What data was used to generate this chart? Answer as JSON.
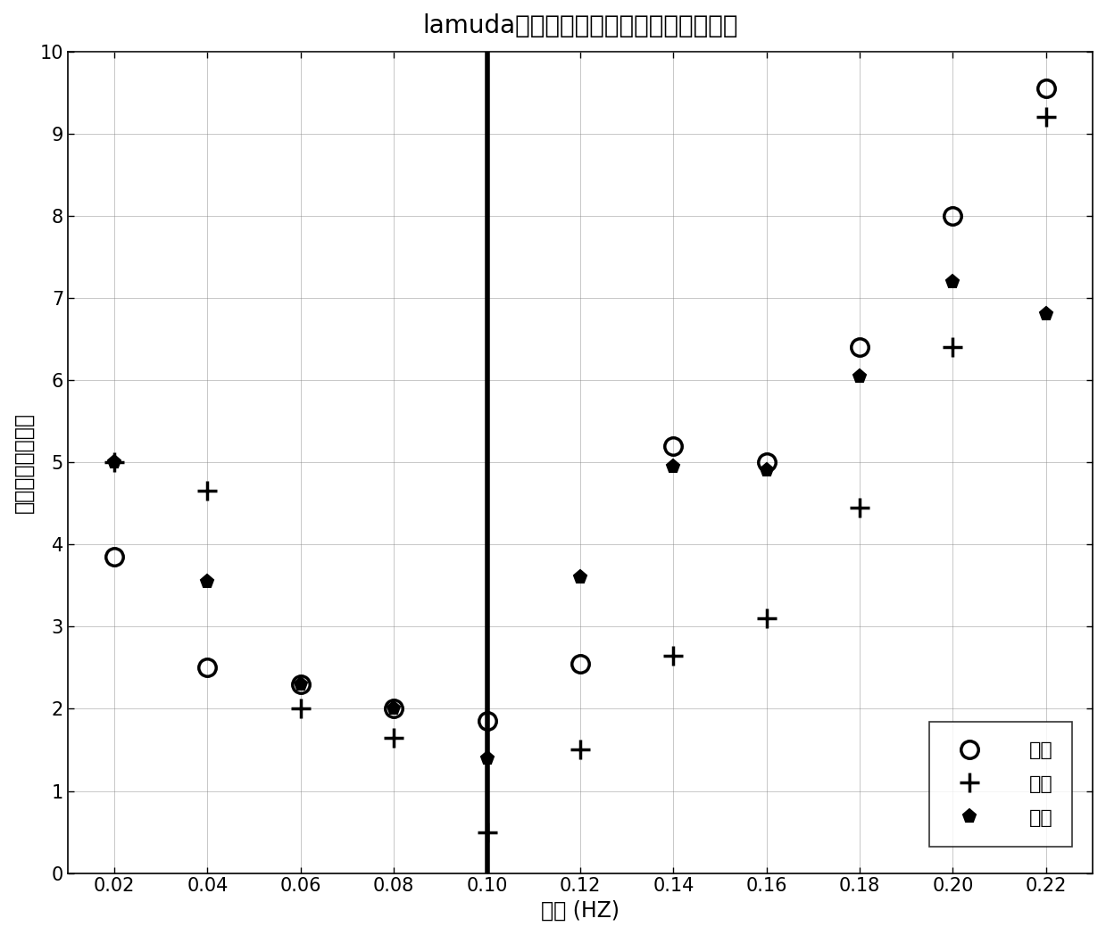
{
  "title": "lamuda变化时三个轴向的变形角误差曲线",
  "xlabel": "频率 (HZ)",
  "ylabel": "估计误差（角分）",
  "xlim": [
    0.01,
    0.23
  ],
  "ylim": [
    0,
    10
  ],
  "xticks": [
    0.02,
    0.04,
    0.06,
    0.08,
    0.1,
    0.12,
    0.14,
    0.16,
    0.18,
    0.2,
    0.22
  ],
  "yticks": [
    0,
    1,
    2,
    3,
    4,
    5,
    6,
    7,
    8,
    9,
    10
  ],
  "vline_x": 0.1,
  "series": {
    "zongxiang": {
      "label": "纵向",
      "marker": "o",
      "markersize": 14,
      "markerfacecolor": "none",
      "markeredgecolor": "black",
      "markeredgewidth": 2.5,
      "x": [
        0.02,
        0.04,
        0.06,
        0.08,
        0.1,
        0.12,
        0.14,
        0.16,
        0.18,
        0.2,
        0.22
      ],
      "y": [
        3.85,
        2.5,
        2.3,
        2.0,
        1.85,
        2.55,
        5.2,
        5.0,
        6.4,
        8.0,
        9.55
      ]
    },
    "hengxiang": {
      "label": "横向",
      "marker": "+",
      "markersize": 16,
      "markerfacecolor": "black",
      "markeredgecolor": "black",
      "markeredgewidth": 2.5,
      "x": [
        0.02,
        0.04,
        0.06,
        0.08,
        0.1,
        0.12,
        0.14,
        0.16,
        0.18,
        0.2,
        0.22
      ],
      "y": [
        5.0,
        4.65,
        2.0,
        1.65,
        0.5,
        1.5,
        2.65,
        3.1,
        4.45,
        6.4,
        9.2
      ]
    },
    "hangxiang": {
      "label": "航向",
      "marker": "p",
      "markersize": 11,
      "markerfacecolor": "black",
      "markeredgecolor": "black",
      "markeredgewidth": 1.5,
      "x": [
        0.02,
        0.04,
        0.06,
        0.08,
        0.1,
        0.12,
        0.14,
        0.16,
        0.18,
        0.2,
        0.22
      ],
      "y": [
        5.0,
        3.55,
        2.3,
        2.0,
        1.4,
        3.6,
        4.95,
        4.9,
        6.05,
        7.2,
        6.8
      ]
    }
  },
  "title_fontsize": 20,
  "label_fontsize": 17,
  "tick_fontsize": 15,
  "legend_fontsize": 16
}
